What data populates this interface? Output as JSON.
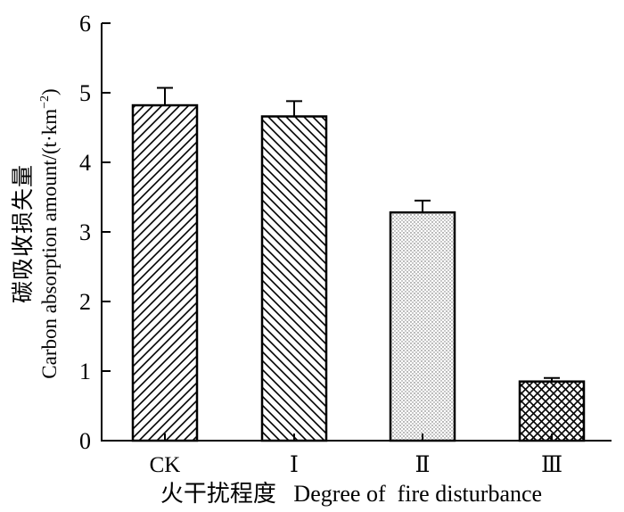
{
  "chart_data": {
    "type": "bar",
    "categories": [
      "CK",
      "Ⅰ",
      "Ⅱ",
      "Ⅲ"
    ],
    "values": [
      4.82,
      4.66,
      3.28,
      0.85
    ],
    "errors": [
      0.25,
      0.22,
      0.17,
      0.05
    ],
    "fills": [
      "hatch-forward",
      "hatch-backward",
      "dotted",
      "crosshatch"
    ],
    "ylim": [
      0,
      6
    ],
    "yticks": [
      "0",
      "1",
      "2",
      "3",
      "4",
      "5",
      "6"
    ],
    "ylabel_cn": "碳吸收损失量",
    "ylabel_en": "Carbon absorption amount/(t·km",
    "ylabel_en_sup": "−2",
    "ylabel_en_close": ")",
    "xlabel": "火干扰程度   Degree of  fire disturbance",
    "grid": false,
    "legend": "none"
  }
}
